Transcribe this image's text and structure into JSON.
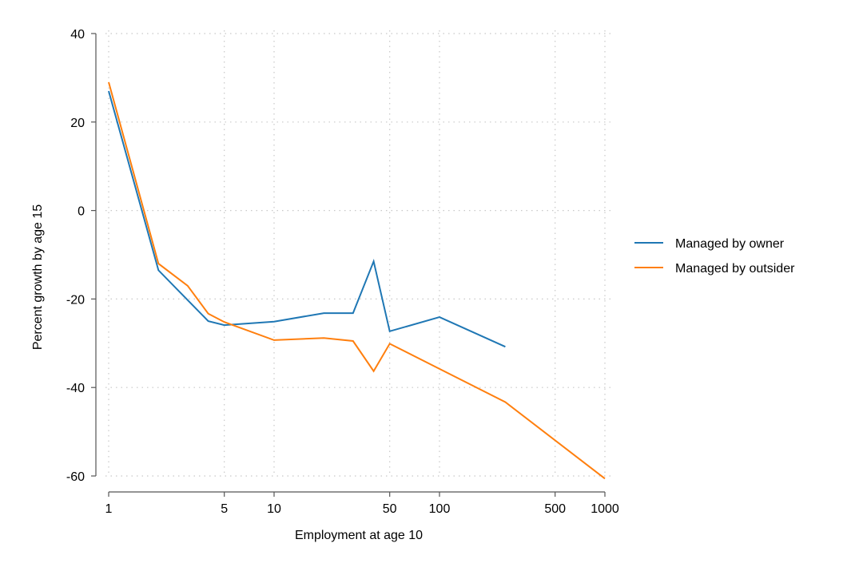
{
  "chart_data": {
    "type": "line",
    "title": "",
    "xlabel": "Employment at age 10",
    "ylabel": "Percent growth by age 15",
    "xscale": "log",
    "xlim": [
      1,
      1000
    ],
    "ylim": [
      -60,
      40
    ],
    "grid": true,
    "legend_position": "right",
    "x_ticks": [
      1,
      5,
      10,
      50,
      100,
      500,
      1000
    ],
    "x_tick_labels": [
      "1",
      "5",
      "10",
      "50",
      "100",
      "500",
      "1000"
    ],
    "x_grid": [
      1,
      5,
      10,
      50,
      100,
      500,
      1000
    ],
    "y_ticks": [
      40,
      20,
      0,
      -20,
      -40,
      -60
    ],
    "y_tick_labels": [
      "40",
      "20",
      "0",
      "-20",
      "-40",
      "-60"
    ],
    "series": [
      {
        "name": "Managed by owner",
        "color": "#1f77b4",
        "x": [
          1,
          2,
          4,
          5,
          10,
          20,
          30,
          40,
          50,
          100,
          250
        ],
        "values": [
          27,
          -13.5,
          -25,
          -25.9,
          -25.1,
          -23.2,
          -23.2,
          -11.5,
          -27.3,
          -24.1,
          -30.8
        ]
      },
      {
        "name": "Managed by outsider",
        "color": "#ff7f0e",
        "x": [
          1,
          2,
          3,
          4,
          5,
          10,
          20,
          30,
          40,
          50,
          100,
          250,
          1000
        ],
        "values": [
          29,
          -12,
          -17,
          -23.3,
          -25.2,
          -29.3,
          -28.8,
          -29.5,
          -36.3,
          -30.1,
          -35.8,
          -43.3,
          -60.6
        ]
      }
    ]
  }
}
